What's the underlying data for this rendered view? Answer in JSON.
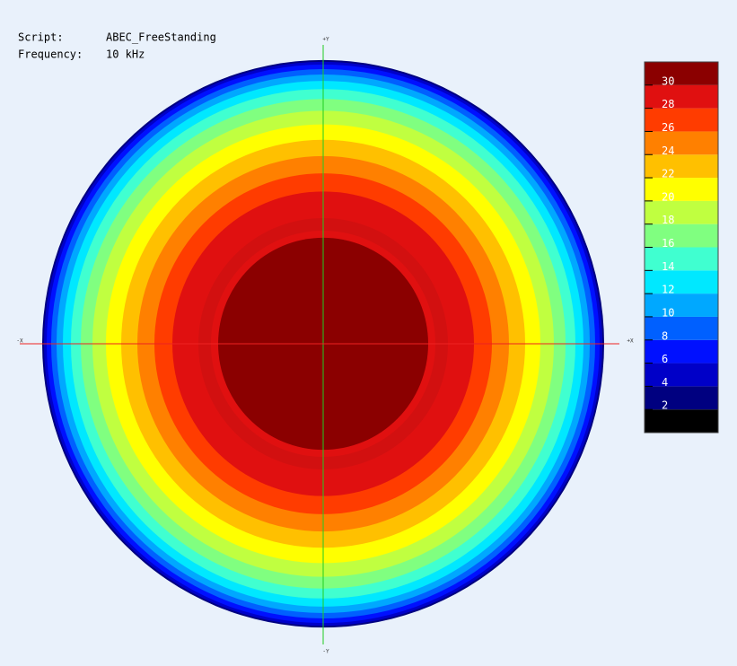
{
  "chart_data": {
    "type": "contour",
    "script_label": "Script:",
    "script": "ABEC_FreeStanding",
    "frequency_label": "Frequency:",
    "frequency": "10 kHz",
    "axis_labels": {
      "top": "+Y",
      "bottom": "-Y",
      "left": "-X",
      "right": "+X"
    },
    "zlim": [
      0,
      32
    ],
    "zticks": [
      2,
      4,
      6,
      8,
      10,
      12,
      14,
      16,
      18,
      20,
      22,
      24,
      26,
      28,
      30
    ],
    "colors": [
      "#000000",
      "#000080",
      "#0000c8",
      "#0010ff",
      "#0060ff",
      "#00a8ff",
      "#00e8ff",
      "#40ffd0",
      "#80ff80",
      "#c0ff40",
      "#ffff00",
      "#ffc000",
      "#ff8000",
      "#ff3c00",
      "#e01010",
      "#8b0000"
    ]
  }
}
